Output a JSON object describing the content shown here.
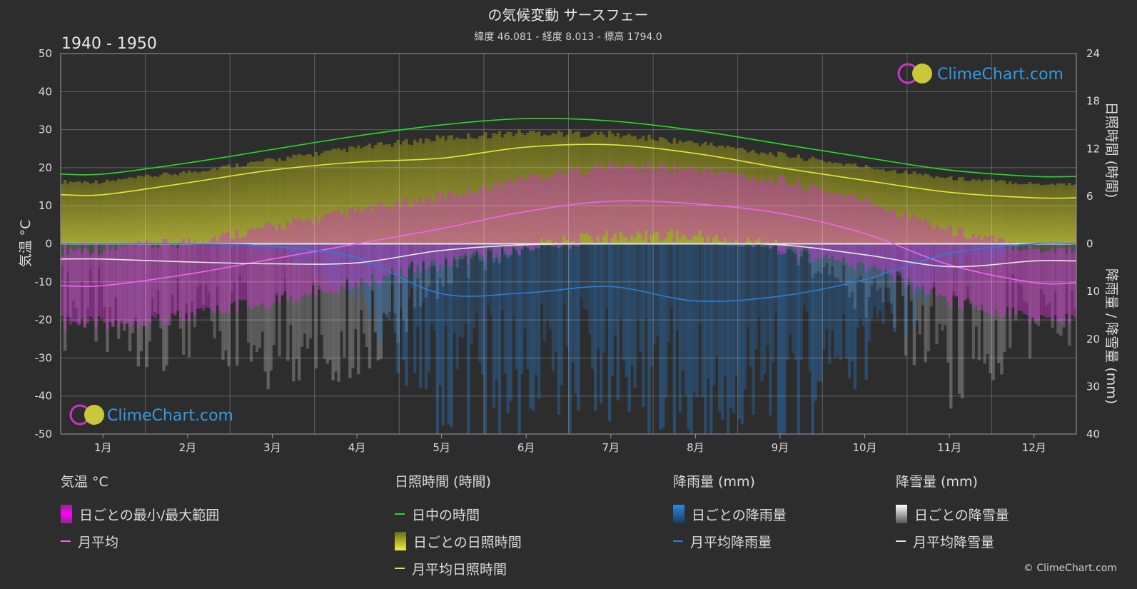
{
  "title": "の気候変動 サースフェー",
  "subtitle": "緯度 46.081 - 経度 8.013 - 標高 1794.0",
  "period": "1940 - 1950",
  "brand": "ClimeChart.com",
  "copyright": "© ClimeChart.com",
  "colors": {
    "background": "#2d2d2d",
    "daylight": "#22dd22",
    "sunshine_avg": "#e6e63a",
    "sunshine_band": "#9a9a2a",
    "temp_avg": "#ee66ee",
    "temp_range": "#cc33cc",
    "rain": "#2a7fd4",
    "snow": "#cfcfcf",
    "brand_text": "#2e9be6"
  },
  "legend": {
    "temperature": {
      "title": "気温 °C",
      "range_label": "日ごとの最小/最大範囲",
      "avg_label": "月平均"
    },
    "sunshine": {
      "title": "日照時間 (時間)",
      "daylight_label": "日中の時間",
      "daily_label": "日ごとの日照時間",
      "avg_label": "月平均日照時間"
    },
    "rain": {
      "title": "降雨量 (mm)",
      "daily_label": "日ごとの降雨量",
      "avg_label": "月平均降雨量"
    },
    "snow": {
      "title": "降雪量 (mm)",
      "daily_label": "日ごとの降雪量",
      "avg_label": "月平均降雪量"
    }
  },
  "chart_data": {
    "type": "line",
    "categories": [
      "1月",
      "2月",
      "3月",
      "4月",
      "5月",
      "6月",
      "7月",
      "8月",
      "9月",
      "10月",
      "11月",
      "12月"
    ],
    "left_axis": {
      "label": "気温 °C",
      "ticks": [
        50,
        40,
        30,
        20,
        10,
        0,
        -10,
        -20,
        -30,
        -40,
        -50
      ],
      "ylim": [
        -50,
        50
      ]
    },
    "right_axis_top": {
      "label": "日照時間 (時間)",
      "ticks": [
        24,
        18,
        12,
        6,
        0
      ],
      "ylim": [
        0,
        24
      ]
    },
    "right_axis_bottom": {
      "label": "降雨量 / 降雪量 (mm)",
      "ticks": [
        0,
        10,
        20,
        30,
        40
      ],
      "ylim": [
        0,
        40
      ]
    },
    "grid": true,
    "series": [
      {
        "name": "日中の時間",
        "axis": "sunshine_hours",
        "values": [
          8.8,
          10.2,
          11.9,
          13.6,
          15.0,
          15.8,
          15.5,
          14.3,
          12.6,
          10.9,
          9.3,
          8.5
        ]
      },
      {
        "name": "月平均日照時間",
        "axis": "sunshine_hours",
        "values": [
          6.2,
          7.7,
          9.3,
          10.3,
          10.8,
          12.2,
          12.5,
          11.4,
          9.6,
          8.0,
          6.5,
          5.8
        ]
      },
      {
        "name": "月平均",
        "axis": "temperature_c",
        "values": [
          -11.0,
          -8.0,
          -4.0,
          0.0,
          4.0,
          8.5,
          11.2,
          10.5,
          8.0,
          2.7,
          -5.5,
          -10.2
        ]
      },
      {
        "name": "月平均降雨量",
        "axis": "precip_mm",
        "values": [
          0.0,
          0.0,
          0.5,
          3.0,
          10.5,
          10.3,
          9.0,
          12.0,
          11.0,
          7.5,
          2.0,
          0.0
        ]
      },
      {
        "name": "月平均降雪量",
        "axis": "precip_mm",
        "values": [
          3.2,
          3.8,
          4.2,
          4.0,
          1.4,
          0.2,
          0.0,
          0.0,
          0.2,
          2.3,
          4.8,
          3.6
        ]
      }
    ],
    "daily_temp_range": {
      "min": [
        -19,
        -17,
        -13,
        -8,
        -3,
        1,
        4,
        4,
        1,
        -4,
        -13,
        -18
      ],
      "max": [
        -3,
        -1,
        3,
        7,
        11,
        16,
        19,
        18,
        15,
        10,
        2,
        -3
      ]
    }
  }
}
